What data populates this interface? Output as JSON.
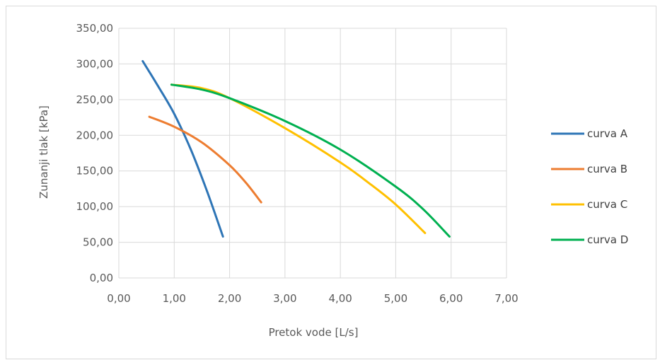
{
  "chart_data": {
    "type": "line",
    "title": "",
    "xlabel": "Pretok vode [L/s]",
    "ylabel": "Zunanji tlak [kPa]",
    "xlim": [
      0,
      7
    ],
    "ylim": [
      0,
      350
    ],
    "x_ticks": [
      "0,00",
      "1,00",
      "2,00",
      "3,00",
      "4,00",
      "5,00",
      "6,00",
      "7,00"
    ],
    "y_ticks": [
      "0,00",
      "50,00",
      "100,00",
      "150,00",
      "200,00",
      "250,00",
      "300,00",
      "350,00"
    ],
    "grid": true,
    "legend_position": "right",
    "series": [
      {
        "name": "curva A",
        "color": "#2e75b6",
        "points": [
          [
            0.43,
            304
          ],
          [
            0.7,
            270
          ],
          [
            1.0,
            230
          ],
          [
            1.3,
            180
          ],
          [
            1.6,
            120
          ],
          [
            1.88,
            58
          ]
        ]
      },
      {
        "name": "curva B",
        "color": "#ed7d31",
        "points": [
          [
            0.55,
            226
          ],
          [
            1.0,
            212
          ],
          [
            1.5,
            190
          ],
          [
            2.0,
            158
          ],
          [
            2.3,
            133
          ],
          [
            2.57,
            106
          ]
        ]
      },
      {
        "name": "curva C",
        "color": "#ffc000",
        "points": [
          [
            0.95,
            271
          ],
          [
            1.5,
            266
          ],
          [
            2.0,
            252
          ],
          [
            3.0,
            210
          ],
          [
            4.0,
            162
          ],
          [
            4.5,
            134
          ],
          [
            5.0,
            103
          ],
          [
            5.53,
            63
          ]
        ]
      },
      {
        "name": "curva D",
        "color": "#00b050",
        "points": [
          [
            0.95,
            271
          ],
          [
            1.5,
            264
          ],
          [
            2.0,
            252
          ],
          [
            3.0,
            220
          ],
          [
            4.0,
            180
          ],
          [
            5.0,
            128
          ],
          [
            5.5,
            96
          ],
          [
            5.97,
            58
          ]
        ]
      }
    ]
  }
}
